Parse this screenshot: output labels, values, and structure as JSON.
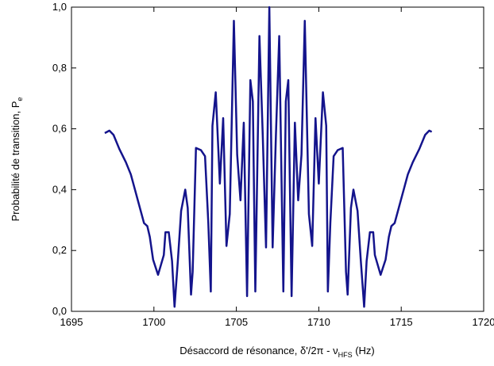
{
  "chart_data": {
    "type": "line",
    "xlabel": "Désaccord de résonance, δ'/2π - ν",
    "xlabel_sub": "HFS",
    "xlabel_end": " (Hz)",
    "ylabel": "Probabilité de transition, P",
    "ylabel_sub": "e",
    "xlim": [
      1695,
      1720
    ],
    "xticks": [
      1695,
      1700,
      1705,
      1710,
      1715,
      1720
    ],
    "ylim": [
      0,
      1
    ],
    "yticks": [
      {
        "value": 0,
        "label": "0,0"
      },
      {
        "value": 0.2,
        "label": "0,2"
      },
      {
        "value": 0.4,
        "label": "0,4"
      },
      {
        "value": 0.6,
        "label": "0,6"
      },
      {
        "value": 0.8,
        "label": "0,8"
      },
      {
        "value": 1,
        "label": "1,0"
      }
    ],
    "series": [
      {
        "color": "#14148c",
        "x": [
          1697.02,
          1697.3,
          1697.55,
          1697.9,
          1698.3,
          1698.6,
          1698.95,
          1699.15,
          1699.4,
          1699.6,
          1699.75,
          1699.95,
          1700.25,
          1700.6,
          1700.7,
          1700.9,
          1701.1,
          1701.25,
          1701.45,
          1701.65,
          1701.9,
          1702.05,
          1702.25,
          1702.35,
          1702.55,
          1702.85,
          1703.1,
          1703.3,
          1703.45,
          1703.55,
          1703.75,
          1704.0,
          1704.2,
          1704.4,
          1704.6,
          1704.85,
          1705.05,
          1705.25,
          1705.45,
          1705.65,
          1705.85,
          1706.0,
          1706.15,
          1706.4,
          1706.6,
          1706.8,
          1707.0,
          1707.2,
          1707.4,
          1707.6,
          1707.85,
          1708.0,
          1708.15,
          1708.35,
          1708.55,
          1708.75,
          1708.95,
          1709.15,
          1709.4,
          1709.6,
          1709.8,
          1710.0,
          1710.25,
          1710.45,
          1710.55,
          1710.7,
          1710.9,
          1711.15,
          1711.45,
          1711.65,
          1711.75,
          1711.95,
          1712.1,
          1712.35,
          1712.55,
          1712.75,
          1712.9,
          1713.1,
          1713.3,
          1713.4,
          1713.75,
          1714.05,
          1714.25,
          1714.4,
          1714.6,
          1714.85,
          1715.05,
          1715.4,
          1715.7,
          1716.1,
          1716.45,
          1716.7,
          1716.85
        ],
        "values": [
          0.586,
          0.594,
          0.58,
          0.534,
          0.49,
          0.45,
          0.38,
          0.34,
          0.29,
          0.28,
          0.245,
          0.17,
          0.12,
          0.185,
          0.26,
          0.26,
          0.165,
          0.015,
          0.165,
          0.33,
          0.4,
          0.34,
          0.055,
          0.13,
          0.537,
          0.53,
          0.51,
          0.29,
          0.065,
          0.61,
          0.72,
          0.42,
          0.635,
          0.215,
          0.32,
          0.955,
          0.515,
          0.365,
          0.62,
          0.05,
          0.76,
          0.69,
          0.065,
          0.905,
          0.58,
          0.21,
          1.0,
          0.21,
          0.58,
          0.905,
          0.065,
          0.69,
          0.76,
          0.05,
          0.62,
          0.365,
          0.515,
          0.955,
          0.32,
          0.215,
          0.635,
          0.42,
          0.72,
          0.61,
          0.065,
          0.29,
          0.51,
          0.53,
          0.537,
          0.13,
          0.055,
          0.34,
          0.4,
          0.33,
          0.165,
          0.015,
          0.165,
          0.26,
          0.26,
          0.185,
          0.12,
          0.17,
          0.245,
          0.28,
          0.29,
          0.34,
          0.38,
          0.45,
          0.49,
          0.534,
          0.58,
          0.594,
          0.59
        ]
      }
    ]
  }
}
